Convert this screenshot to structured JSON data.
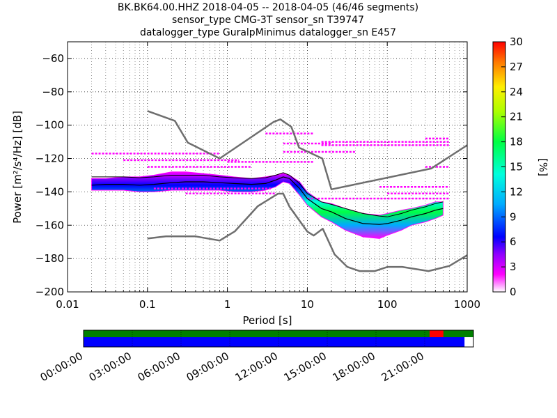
{
  "title_lines": [
    "BK.BK64.00.HHZ   2018-04-05 -- 2018-04-05  (46/46 segments)",
    "sensor_type CMG-3T sensor_sn T39747",
    "datalogger_type GuralpMinimus datalogger_sn E457"
  ],
  "colors": {
    "noise_model": "#6e6e6e",
    "mode_line": "#000000",
    "grid": "#000000",
    "coverage_data": "#0000ff",
    "coverage_ok": "#008000",
    "coverage_gap": "#ff0000"
  },
  "chart_data": {
    "type": "heatmap",
    "xlabel": "Period [s]",
    "ylabel": "Power [m²/s⁴/Hz] [dB]",
    "x_scale": "log",
    "xlim": [
      0.01,
      1000
    ],
    "ylim": [
      -200,
      -50
    ],
    "x_ticks": [
      0.01,
      0.1,
      1,
      10,
      100,
      1000
    ],
    "x_tick_labels": [
      "0.01",
      "0.1",
      "1",
      "10",
      "100",
      "1000"
    ],
    "y_ticks": [
      -200,
      -180,
      -160,
      -140,
      -120,
      -100,
      -80,
      -60
    ],
    "y_tick_labels": [
      "−200",
      "−180",
      "−160",
      "−140",
      "−120",
      "−100",
      "−80",
      "−60"
    ],
    "grid": true,
    "colorbar": {
      "label": "[%]",
      "range": [
        0,
        30
      ],
      "ticks": [
        "0",
        "3",
        "6",
        "9",
        "12",
        "15",
        "18",
        "21",
        "24",
        "27",
        "30"
      ],
      "colors": [
        "#ffffff",
        "#ff00ff",
        "#9000ff",
        "#0000ff",
        "#00aaff",
        "#00ffdd",
        "#00ff44",
        "#aaff00",
        "#ffee00",
        "#ff7700",
        "#ff0000"
      ]
    },
    "noise_model_high": {
      "period": [
        0.1,
        0.22,
        0.32,
        0.8,
        3.8,
        4.6,
        6.3,
        7.9,
        15.4,
        20,
        354.8,
        1000
      ],
      "power": [
        -91.5,
        -97.4,
        -110.5,
        -120,
        -98,
        -96.5,
        -101,
        -113.5,
        -120,
        -138.5,
        -126,
        -112
      ]
    },
    "noise_model_low": {
      "period": [
        0.1,
        0.17,
        0.4,
        0.8,
        1.24,
        2.4,
        4.3,
        5,
        6,
        10,
        12,
        15.6,
        21.9,
        31.6,
        45,
        70,
        101,
        154,
        328,
        600,
        1000
      ],
      "power": [
        -168,
        -166.7,
        -166.7,
        -169.2,
        -163.7,
        -148.6,
        -141.1,
        -141.1,
        -149,
        -163.8,
        -166.2,
        -162.1,
        -177.5,
        -185,
        -187.5,
        -187.5,
        -185,
        -185,
        -187.5,
        -184.4,
        -178
      ]
    },
    "mode_curve": {
      "period": [
        0.02,
        0.03,
        0.05,
        0.08,
        0.12,
        0.2,
        0.3,
        0.5,
        0.8,
        1.2,
        2,
        3,
        4,
        5,
        6,
        8,
        10,
        15,
        20,
        30,
        50,
        80,
        100,
        150,
        200,
        300,
        400,
        500
      ],
      "power": [
        -136,
        -135.5,
        -135.5,
        -136,
        -135.5,
        -134.5,
        -134,
        -134,
        -134.5,
        -135,
        -135.5,
        -135,
        -133,
        -131,
        -132,
        -138,
        -144,
        -150,
        -152,
        -156,
        -159,
        -159.5,
        -159,
        -157,
        -155,
        -153,
        -151,
        -150
      ]
    },
    "envelope_upper": {
      "period": [
        0.02,
        0.03,
        0.05,
        0.08,
        0.12,
        0.2,
        0.3,
        0.5,
        0.8,
        1.2,
        2,
        3,
        4,
        5,
        6,
        8,
        10,
        15,
        20,
        30,
        50,
        80,
        100,
        150,
        200,
        300,
        400,
        500
      ],
      "power": [
        -131,
        -131,
        -131,
        -131.5,
        -131,
        -130,
        -130,
        -130,
        -131,
        -131.5,
        -132,
        -131.5,
        -130,
        -128.5,
        -130,
        -135,
        -141,
        -146,
        -147.5,
        -150,
        -153,
        -154.5,
        -155,
        -153,
        -151,
        -149,
        -147,
        -146
      ]
    },
    "mode_band": {
      "period": [
        0.02,
        0.03,
        0.05,
        0.08,
        0.12,
        0.2,
        0.3,
        0.5,
        0.8,
        1.2,
        2,
        3,
        4,
        5,
        6,
        8,
        10,
        15,
        20,
        30,
        50,
        80,
        100,
        150,
        200,
        300,
        400,
        500
      ],
      "low": [
        -139,
        -139,
        -139,
        -140,
        -140,
        -139,
        -139,
        -139,
        -139,
        -140,
        -140,
        -139,
        -137,
        -134,
        -135,
        -142,
        -148,
        -155,
        -158,
        -163,
        -167,
        -168,
        -166,
        -163,
        -160,
        -158,
        -156,
        -154
      ],
      "high": [
        -132,
        -132,
        -131,
        -131,
        -130,
        -128,
        -128,
        -129,
        -130,
        -131,
        -132,
        -131,
        -130,
        -129,
        -130,
        -134,
        -140,
        -146,
        -147,
        -150,
        -153,
        -154,
        -153,
        -151,
        -150,
        -148,
        -146,
        -146
      ]
    },
    "scatter_traces": [
      {
        "y": -117,
        "from": 0.02,
        "to": 0.8
      },
      {
        "y": -121,
        "from": 0.05,
        "to": 1.4
      },
      {
        "y": -125,
        "from": 0.1,
        "to": 2
      },
      {
        "y": -138,
        "from": 0.12,
        "to": 3.5
      },
      {
        "y": -141,
        "from": 0.3,
        "to": 4
      },
      {
        "y": -122,
        "from": 1,
        "to": 12
      },
      {
        "y": -105,
        "from": 3,
        "to": 12
      },
      {
        "y": -111,
        "from": 5,
        "to": 20
      },
      {
        "y": -116,
        "from": 5,
        "to": 40
      },
      {
        "y": -110,
        "from": 15,
        "to": 600
      },
      {
        "y": -112,
        "from": 15,
        "to": 600
      },
      {
        "y": -108,
        "from": 300,
        "to": 600
      },
      {
        "y": -125,
        "from": 300,
        "to": 600
      },
      {
        "y": -137,
        "from": 80,
        "to": 600
      },
      {
        "y": -144,
        "from": 10,
        "to": 600
      },
      {
        "y": -141,
        "from": 100,
        "to": 600
      }
    ],
    "coverage": {
      "x_ticks": [
        "00:00:00",
        "03:00:00",
        "06:00:00",
        "09:00:00",
        "12:00:00",
        "15:00:00",
        "18:00:00",
        "21:00:00"
      ],
      "hours_span": [
        0,
        24
      ],
      "data_until_hour": 23.45,
      "gap_from_hour": 21.3,
      "gap_to_hour": 22.15
    }
  }
}
